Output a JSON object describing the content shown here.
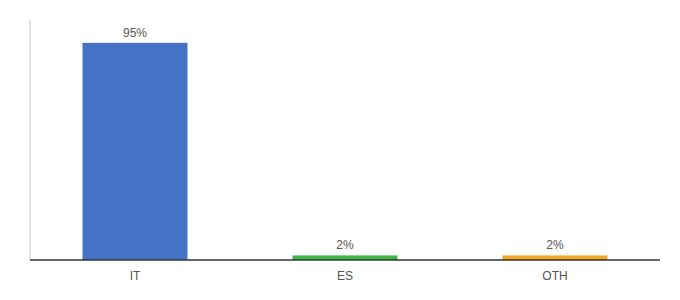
{
  "chart_data": {
    "type": "bar",
    "categories": [
      "IT",
      "ES",
      "OTH"
    ],
    "values": [
      95,
      2,
      2
    ],
    "value_labels": [
      "95%",
      "2%",
      "2%"
    ],
    "colors": [
      "#4472c4",
      "#3cb843",
      "#f5a623"
    ],
    "ylim": [
      0,
      105
    ],
    "grid": false,
    "data_labels": true,
    "tick_labels": "x"
  }
}
